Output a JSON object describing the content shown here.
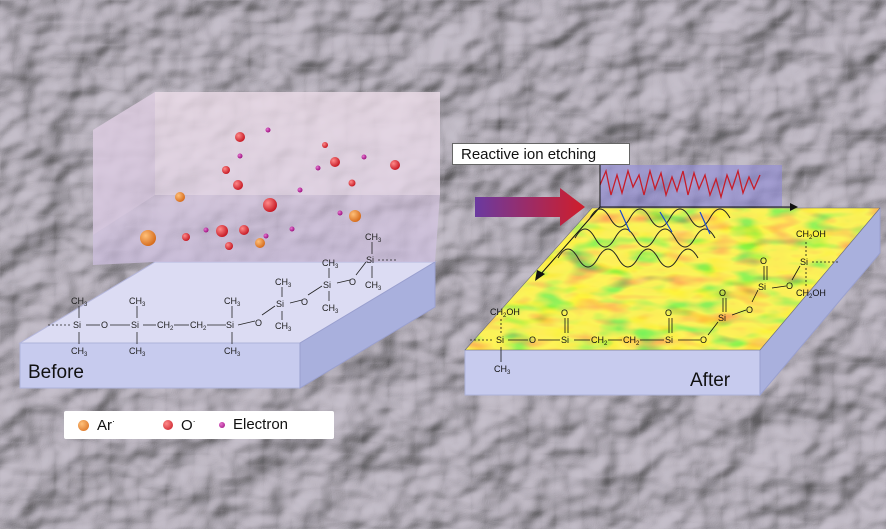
{
  "labels": {
    "before": "Before",
    "after": "After",
    "process": "Reactive ion etching"
  },
  "legend": [
    {
      "text": "Ar",
      "sup": "·",
      "color": "#e77d2a"
    },
    {
      "text": "O",
      "sup": "·",
      "color": "#d81f2a"
    },
    {
      "text": "Electron",
      "sup": "",
      "color": "#b1138d"
    }
  ],
  "chem": {
    "si": "Si",
    "o": "O",
    "ch3": "CH",
    "ch3_sub": "3",
    "ch2": "CH",
    "ch2_sub": "2",
    "ch2oh": "CH",
    "ch2oh_sub": "2",
    "ch2oh_tail": "OH"
  },
  "colors": {
    "argon": "#e77d2a",
    "oxygen": "#d81f2a",
    "electron": "#b1138d",
    "arrow": "#c8202a",
    "slab_top": "#d9dbf5",
    "slab_side": "#b9bfe6"
  }
}
